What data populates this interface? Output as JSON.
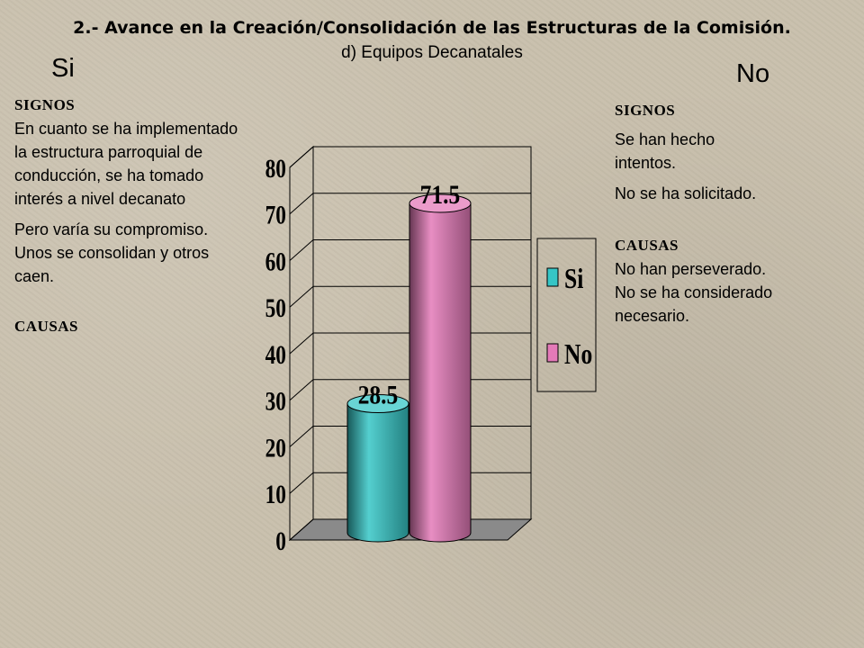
{
  "header": {
    "title": "2.- Avance en la Creación/Consolidación de las Estructuras de la Comisión.",
    "subtitle": "d) Equipos Decanatales"
  },
  "left": {
    "heading": "Si",
    "signos_label": "SIGNOS",
    "signos_p1": "En cuanto se ha implementado la estructura parroquial de conducción, se ha tomado interés a nivel decanato",
    "signos_p2": "Pero varía su compromiso. Unos se consolidan y otros caen.",
    "causas_label": "CAUSAS"
  },
  "right": {
    "heading": "No",
    "signos_label": "SIGNOS",
    "signos_p1": "Se han hecho intentos.",
    "signos_p2": "No se ha solicitado.",
    "causas_label": "CAUSAS",
    "causas_p1": "No han perseverado.",
    "causas_p2": "No se ha considerado necesario."
  },
  "chart_data": {
    "type": "bar",
    "style": "3d-cylinder",
    "categories": [
      "Si",
      "No"
    ],
    "values": [
      28.5,
      71.5
    ],
    "data_labels": [
      "28.5",
      "71.5"
    ],
    "colors": [
      "#36c6c6",
      "#e47ab8"
    ],
    "ylim": [
      0,
      80
    ],
    "yticks": [
      "0",
      "10",
      "20",
      "30",
      "40",
      "50",
      "60",
      "70",
      "80"
    ],
    "grid": true,
    "legend": {
      "placement": "right",
      "entries": [
        {
          "label": "Si",
          "color": "#36c6c6"
        },
        {
          "label": "No",
          "color": "#e47ab8"
        }
      ]
    }
  }
}
